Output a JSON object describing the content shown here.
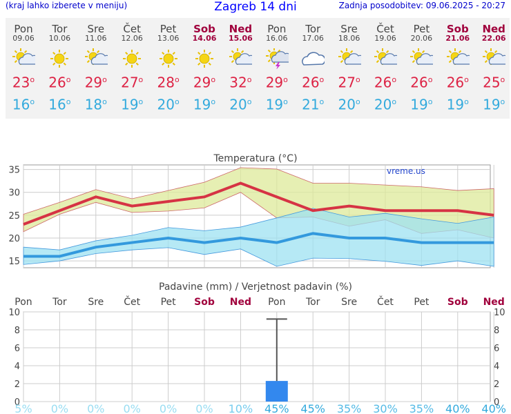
{
  "header": {
    "note": "(kraj lahko izberete v meniju)",
    "title": "Zagreb 14 dni",
    "updated": "Zadnja posodobitev: 09.06.2025 - 20:27"
  },
  "days": [
    {
      "name": "Pon",
      "date": "09.06",
      "weekend": false,
      "icon": "sun-cloud-icon",
      "tmax": "23",
      "tmin": "16"
    },
    {
      "name": "Tor",
      "date": "10.06",
      "weekend": false,
      "icon": "sun-icon",
      "tmax": "26",
      "tmin": "16"
    },
    {
      "name": "Sre",
      "date": "11.06",
      "weekend": false,
      "icon": "sun-cloud-icon",
      "tmax": "29",
      "tmin": "18"
    },
    {
      "name": "Čet",
      "date": "12.06",
      "weekend": false,
      "icon": "sun-icon",
      "tmax": "27",
      "tmin": "19"
    },
    {
      "name": "Pet",
      "date": "13.06",
      "weekend": false,
      "icon": "sun-icon",
      "tmax": "28",
      "tmin": "20"
    },
    {
      "name": "Sob",
      "date": "14.06",
      "weekend": true,
      "icon": "sun-icon",
      "tmax": "29",
      "tmin": "19"
    },
    {
      "name": "Ned",
      "date": "15.06",
      "weekend": true,
      "icon": "sun-cloud-icon",
      "tmax": "32",
      "tmin": "20"
    },
    {
      "name": "Pon",
      "date": "16.06",
      "weekend": false,
      "icon": "thunderstorm-icon",
      "tmax": "29",
      "tmin": "19"
    },
    {
      "name": "Tor",
      "date": "17.06",
      "weekend": false,
      "icon": "cloud-icon",
      "tmax": "26",
      "tmin": "21"
    },
    {
      "name": "Sre",
      "date": "18.06",
      "weekend": false,
      "icon": "sun-cloud-icon",
      "tmax": "27",
      "tmin": "20"
    },
    {
      "name": "Čet",
      "date": "19.06",
      "weekend": false,
      "icon": "sun-cloud-icon",
      "tmax": "26",
      "tmin": "20"
    },
    {
      "name": "Pet",
      "date": "20.06",
      "weekend": false,
      "icon": "sun-cloud-icon",
      "tmax": "26",
      "tmin": "19"
    },
    {
      "name": "Sob",
      "date": "21.06",
      "weekend": true,
      "icon": "sun-cloud-icon",
      "tmax": "26",
      "tmin": "19"
    },
    {
      "name": "Ned",
      "date": "22.06",
      "weekend": true,
      "icon": "sun-cloud-icon",
      "tmax": "25",
      "tmin": "19"
    }
  ],
  "chart_data": [
    {
      "type": "line",
      "title": "Temperatura (°C)",
      "watermark": "vreme.us",
      "ylim": [
        13.5,
        36
      ],
      "yticks": [
        15,
        20,
        25,
        30,
        35
      ],
      "grid": true,
      "series": [
        {
          "role": "max-band",
          "color": "#dde999",
          "edge": "#cc6666",
          "upper": [
            25.2,
            27.8,
            30.6,
            28.6,
            30.4,
            32.2,
            35.4,
            35.1,
            32.0,
            32.0,
            31.6,
            31.2,
            30.4,
            30.8
          ],
          "lower": [
            21.4,
            25.2,
            27.8,
            25.6,
            25.9,
            26.6,
            30.0,
            24.4,
            24.6,
            22.6,
            24.0,
            21.0,
            21.8,
            20.0
          ]
        },
        {
          "role": "min-band",
          "color": "#9ee2f2",
          "edge": "#4499dd",
          "upper": [
            18.0,
            17.4,
            19.4,
            20.6,
            22.3,
            21.6,
            22.4,
            24.4,
            26.5,
            24.6,
            25.4,
            24.2,
            23.2,
            24.6
          ],
          "lower": [
            14.2,
            15.0,
            16.6,
            17.4,
            17.9,
            16.4,
            17.6,
            13.8,
            15.6,
            15.5,
            14.9,
            14.0,
            15.0,
            13.8
          ]
        },
        {
          "role": "max",
          "color": "#d63344",
          "values": [
            23,
            26,
            29,
            27,
            28,
            29,
            32,
            29,
            26,
            27,
            26,
            26,
            26,
            25
          ]
        },
        {
          "role": "min",
          "color": "#3399dd",
          "values": [
            16,
            16,
            18,
            19,
            20,
            19,
            20,
            19,
            21,
            20,
            20,
            19,
            19,
            19
          ]
        }
      ]
    },
    {
      "type": "bar",
      "title": "Padavine (mm) / Verjetnost padavin (%)",
      "categories": [
        "Pon",
        "Tor",
        "Sre",
        "Čet",
        "Pet",
        "Sob",
        "Ned",
        "Pon",
        "Tor",
        "Sre",
        "Čet",
        "Pet",
        "Sob",
        "Ned"
      ],
      "weekend": [
        false,
        false,
        false,
        false,
        false,
        true,
        true,
        false,
        false,
        false,
        false,
        false,
        true,
        true
      ],
      "values": [
        0,
        0,
        0,
        0,
        0,
        0,
        0,
        2.3,
        0,
        0,
        0,
        0,
        0,
        0
      ],
      "error_high": [
        null,
        null,
        null,
        null,
        null,
        null,
        null,
        9.2,
        null,
        null,
        null,
        null,
        null,
        null
      ],
      "probabilities": [
        "5%",
        "0%",
        "0%",
        "0%",
        "0%",
        "0%",
        "10%",
        "45%",
        "45%",
        "35%",
        "30%",
        "35%",
        "40%",
        "40%"
      ],
      "ylim": [
        0,
        10
      ],
      "yticks": [
        "0",
        "2",
        "4",
        "6",
        "8",
        "10"
      ],
      "bar_color": "#3388ee",
      "grid": true
    }
  ]
}
